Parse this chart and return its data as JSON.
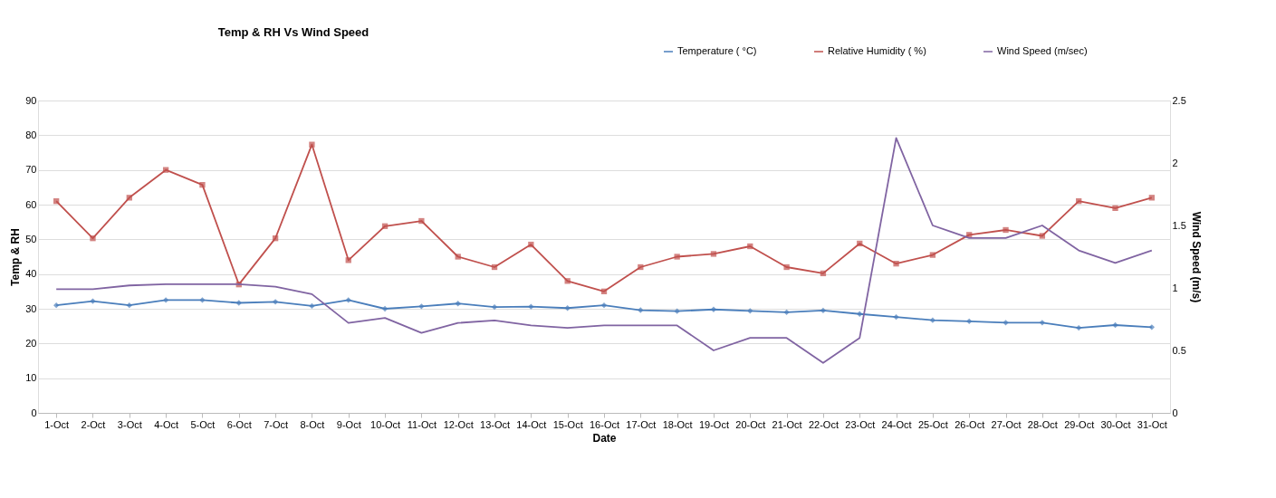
{
  "chart_data": {
    "type": "line",
    "title": "Temp & RH Vs Wind Speed",
    "xlabel": "Date",
    "ylabel": "Temp & RH",
    "y2label": "Wind Speed (m/s)",
    "categories": [
      "1-Oct",
      "2-Oct",
      "3-Oct",
      "4-Oct",
      "5-Oct",
      "6-Oct",
      "7-Oct",
      "8-Oct",
      "9-Oct",
      "10-Oct",
      "11-Oct",
      "12-Oct",
      "13-Oct",
      "14-Oct",
      "15-Oct",
      "16-Oct",
      "17-Oct",
      "18-Oct",
      "19-Oct",
      "20-Oct",
      "21-Oct",
      "22-Oct",
      "23-Oct",
      "24-Oct",
      "25-Oct",
      "26-Oct",
      "27-Oct",
      "28-Oct",
      "29-Oct",
      "30-Oct",
      "31-Oct"
    ],
    "series": [
      {
        "name": "Temperature ( °C)",
        "color": "#4a7ebb",
        "marker": "diamond",
        "values": [
          31,
          32.2,
          31,
          32.5,
          32.5,
          31.7,
          32,
          30.8,
          32.5,
          30,
          30.7,
          31.5,
          30.5,
          30.6,
          30.2,
          31,
          29.6,
          29.3,
          29.8,
          29.4,
          29,
          29.5,
          28.5,
          27.6,
          26.7,
          26.4,
          26,
          26,
          24.5,
          25.3,
          24.7
        ]
      },
      {
        "name": "Relative Humidity ( %)",
        "color": "#c0504d",
        "marker": "square",
        "values": [
          61,
          50.3,
          62,
          70,
          65.7,
          37,
          50.3,
          77.3,
          44,
          53.8,
          55.3,
          45,
          42,
          48.5,
          38,
          35,
          42,
          45,
          45.8,
          48,
          42,
          40.2,
          48.8,
          43,
          45.5,
          51.3,
          52.7,
          51,
          61,
          59,
          62
        ]
      },
      {
        "name": "Wind Speed (m/sec)",
        "color": "#8064a2",
        "marker": "none",
        "axis": "y2",
        "values": [
          0.99,
          0.99,
          1.02,
          1.03,
          1.03,
          1.03,
          1.01,
          0.95,
          0.72,
          0.76,
          0.64,
          0.72,
          0.74,
          0.7,
          0.68,
          0.7,
          0.7,
          0.7,
          0.5,
          0.6,
          0.6,
          0.4,
          0.6,
          2.2,
          1.5,
          1.4,
          1.4,
          1.5,
          1.3,
          1.2,
          1.3
        ]
      }
    ],
    "ylim": [
      0,
      90
    ],
    "yticks": [
      0,
      10,
      20,
      30,
      40,
      50,
      60,
      70,
      80,
      90
    ],
    "y2lim": [
      0,
      2.5
    ],
    "y2ticks": [
      0,
      0.5,
      1,
      1.5,
      2,
      2.5
    ],
    "grid": "y",
    "legend": "top right",
    "line_style": "solid"
  }
}
